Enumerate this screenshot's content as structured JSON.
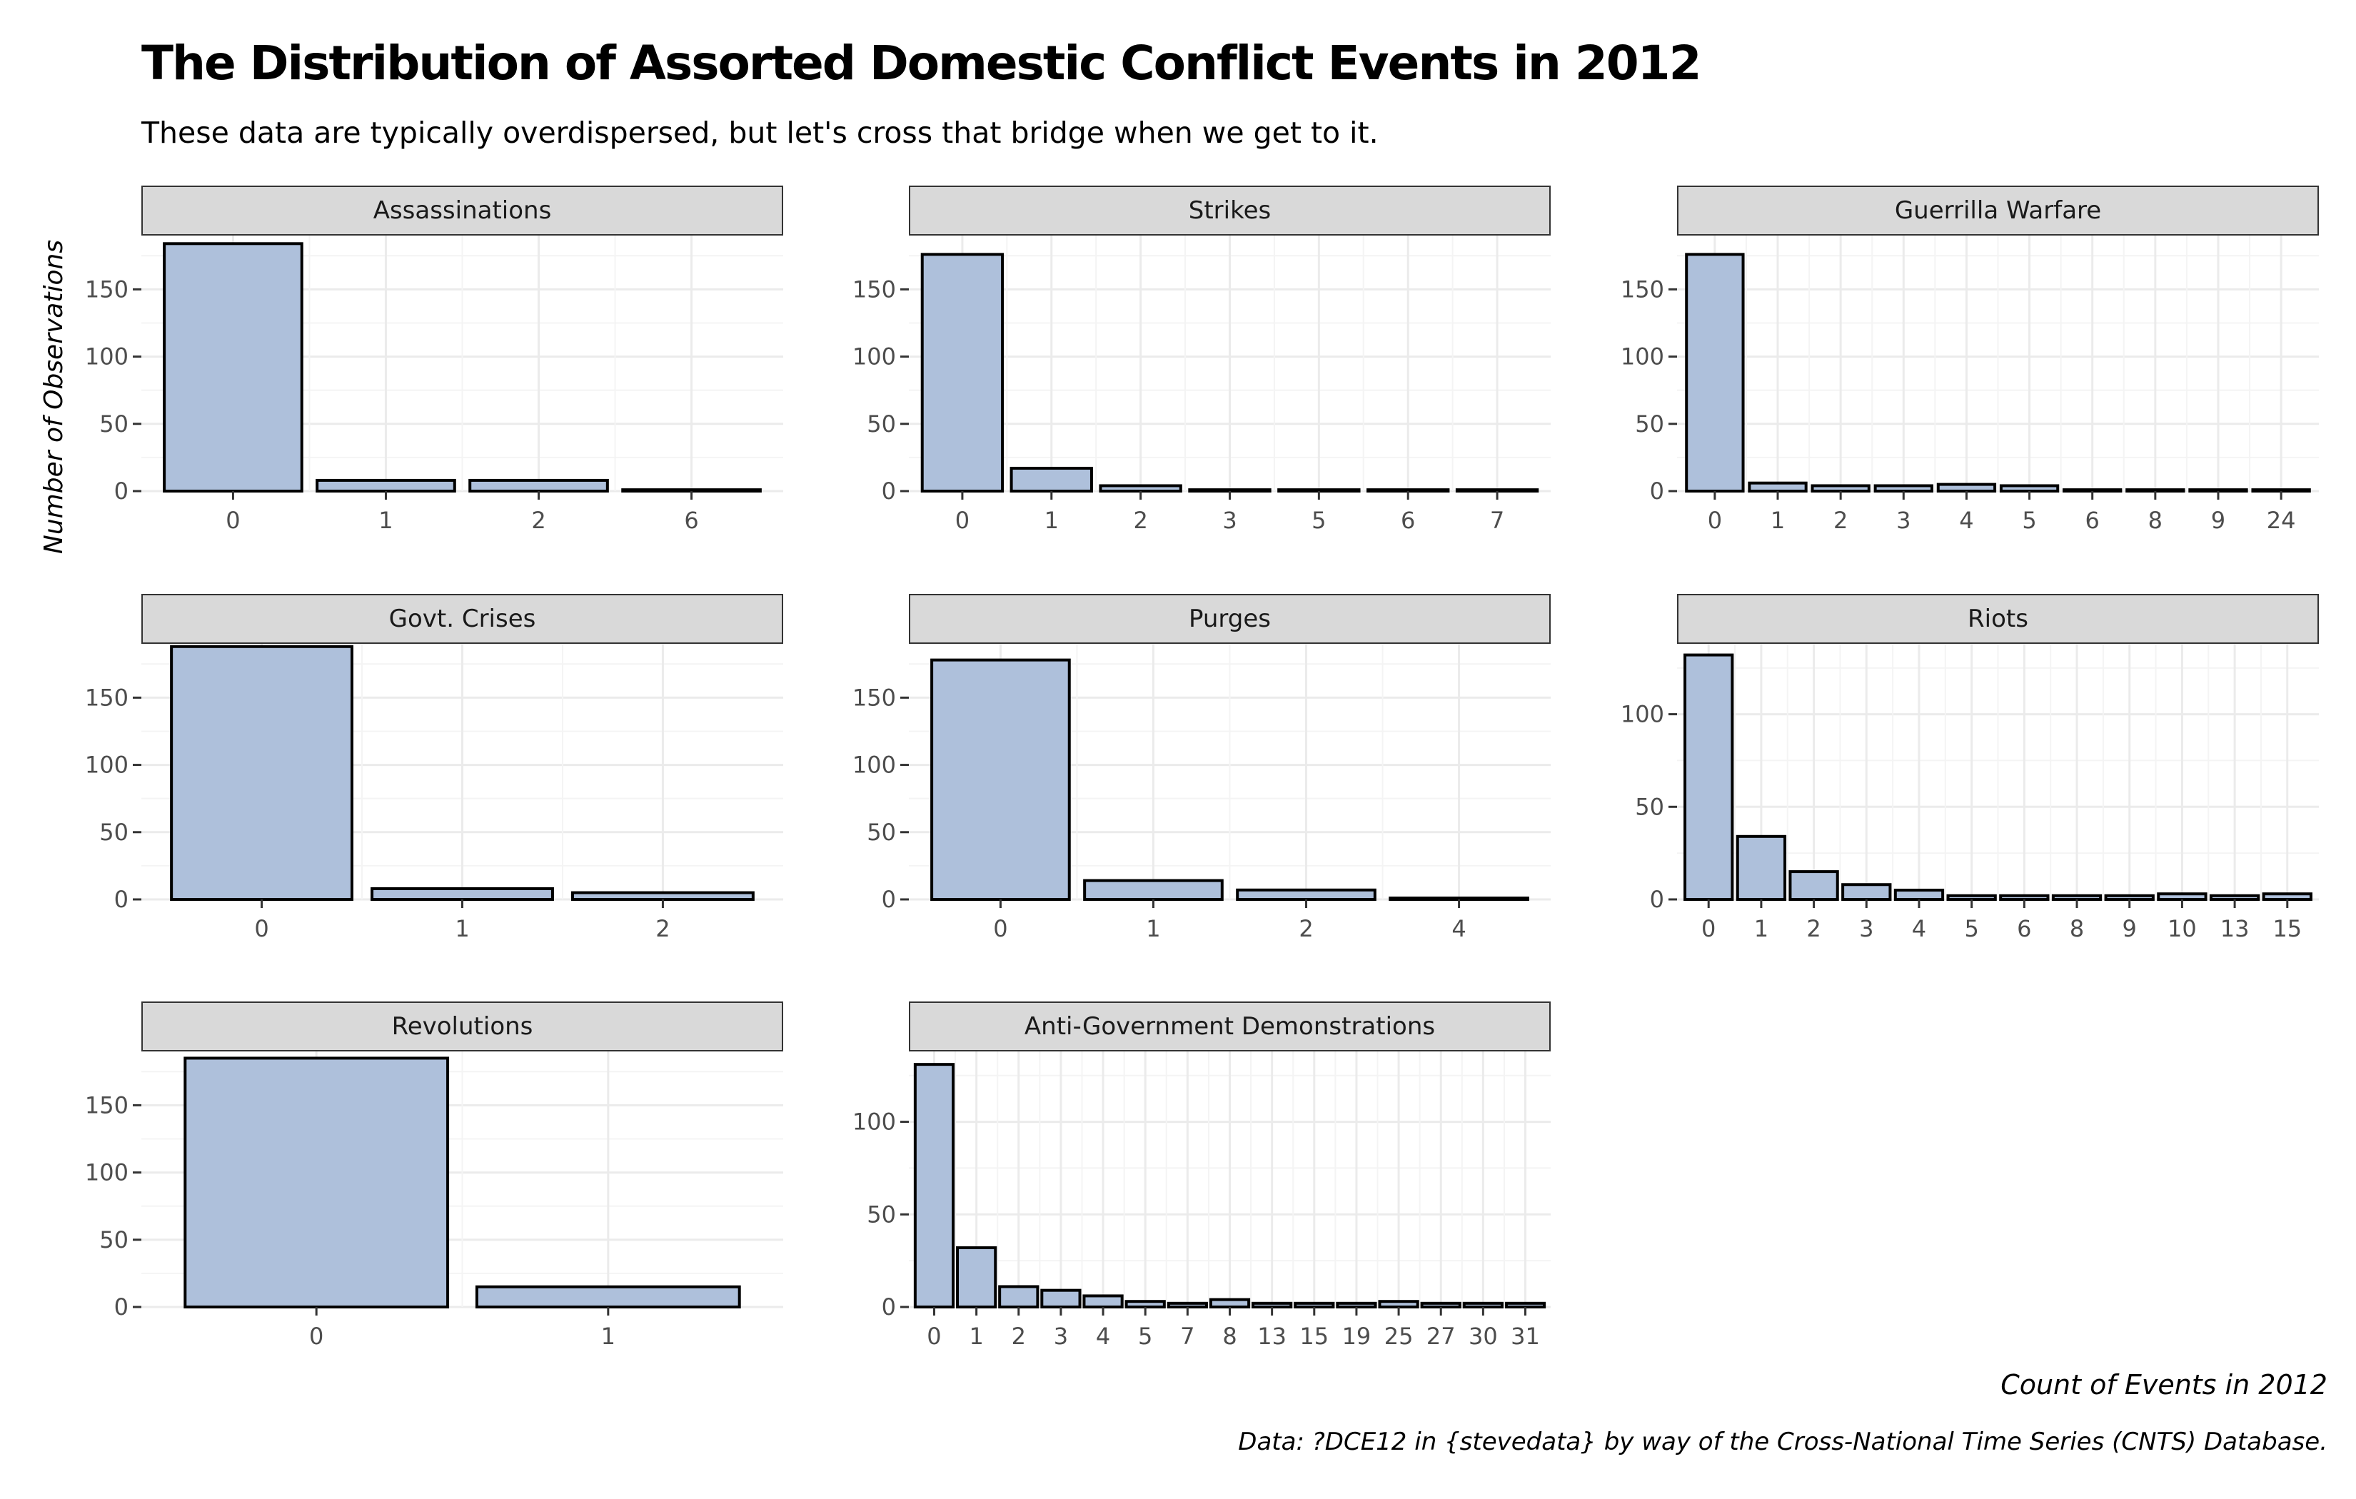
{
  "title": "The Distribution of Assorted Domestic Conflict Events in 2012",
  "subtitle": "These data are typically overdispersed, but let's cross that bridge when we get to it.",
  "ylabel": "Number of Observations",
  "xlabel": "Count of Events in 2012",
  "caption": "Data: ?DCE12 in {stevedata} by way of the Cross-National Time Series (CNTS) Database.",
  "colors": {
    "bar_fill": "#aec0db",
    "bar_stroke": "#000000",
    "strip_fill": "#d9d9d9",
    "grid_major": "#ebebeb",
    "grid_minor": "#f4f4f4"
  },
  "chart_data": [
    {
      "type": "bar",
      "title": "Assassinations",
      "categories": [
        "0",
        "1",
        "2",
        "6"
      ],
      "values": [
        184,
        8,
        8,
        1
      ],
      "ylim": [
        0,
        190
      ],
      "yticks": [
        0,
        50,
        100,
        150
      ],
      "grid": true
    },
    {
      "type": "bar",
      "title": "Strikes",
      "categories": [
        "0",
        "1",
        "2",
        "3",
        "5",
        "6",
        "7"
      ],
      "values": [
        176,
        17,
        4,
        1,
        1,
        1,
        1
      ],
      "ylim": [
        0,
        190
      ],
      "yticks": [
        0,
        50,
        100,
        150
      ],
      "grid": true
    },
    {
      "type": "bar",
      "title": "Guerrilla Warfare",
      "categories": [
        "0",
        "1",
        "2",
        "3",
        "4",
        "5",
        "6",
        "8",
        "9",
        "24"
      ],
      "values": [
        176,
        6,
        4,
        4,
        5,
        4,
        1,
        1,
        1,
        1
      ],
      "ylim": [
        0,
        190
      ],
      "yticks": [
        0,
        50,
        100,
        150
      ],
      "grid": true
    },
    {
      "type": "bar",
      "title": "Govt. Crises",
      "categories": [
        "0",
        "1",
        "2"
      ],
      "values": [
        188,
        8,
        5
      ],
      "ylim": [
        0,
        190
      ],
      "yticks": [
        0,
        50,
        100,
        150
      ],
      "grid": true
    },
    {
      "type": "bar",
      "title": "Purges",
      "categories": [
        "0",
        "1",
        "2",
        "4"
      ],
      "values": [
        178,
        14,
        7,
        1
      ],
      "ylim": [
        0,
        190
      ],
      "yticks": [
        0,
        50,
        100,
        150
      ],
      "grid": true
    },
    {
      "type": "bar",
      "title": "Riots",
      "categories": [
        "0",
        "1",
        "2",
        "3",
        "4",
        "5",
        "6",
        "8",
        "9",
        "10",
        "13",
        "15"
      ],
      "values": [
        132,
        34,
        15,
        8,
        5,
        2,
        2,
        2,
        2,
        3,
        2,
        3
      ],
      "ylim": [
        0,
        138
      ],
      "yticks": [
        0,
        50,
        100
      ],
      "grid": true
    },
    {
      "type": "bar",
      "title": "Revolutions",
      "categories": [
        "0",
        "1"
      ],
      "values": [
        185,
        15
      ],
      "ylim": [
        0,
        190
      ],
      "yticks": [
        0,
        50,
        100,
        150
      ],
      "grid": true
    },
    {
      "type": "bar",
      "title": "Anti-Government Demonstrations",
      "categories": [
        "0",
        "1",
        "2",
        "3",
        "4",
        "5",
        "7",
        "8",
        "13",
        "15",
        "19",
        "25",
        "27",
        "30",
        "31"
      ],
      "values": [
        131,
        32,
        11,
        9,
        6,
        3,
        2,
        4,
        2,
        2,
        2,
        3,
        2,
        2,
        2
      ],
      "ylim": [
        0,
        138
      ],
      "yticks": [
        0,
        50,
        100
      ],
      "grid": true
    }
  ]
}
